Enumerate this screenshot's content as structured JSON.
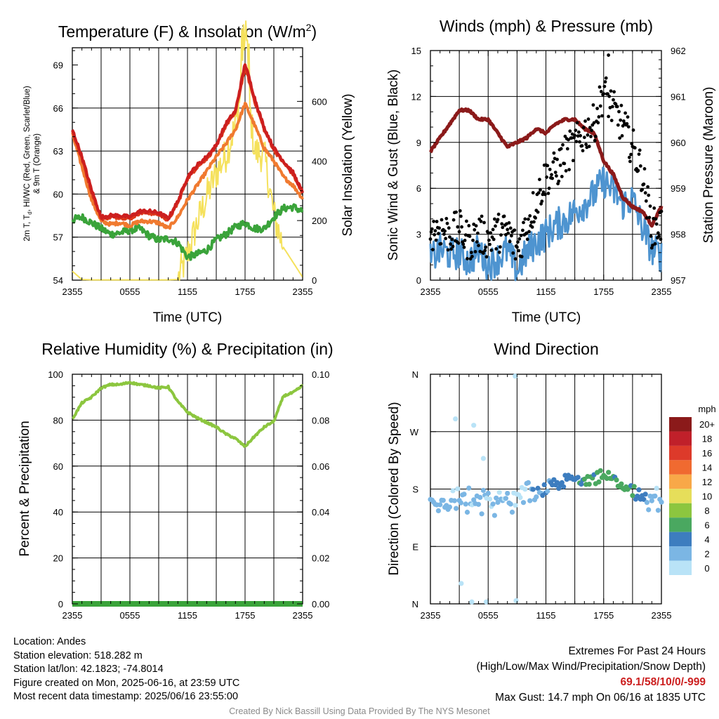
{
  "chart_data": [
    {
      "type": "line",
      "title": "Temperature (F) & Insolation (W/m²)",
      "xlabel": "Time (UTC)",
      "ylabel_left": "2m T, Td, HI/WC (Red, Green, Scarlet/Blue) & 9m T (Orange)",
      "ylabel_right": "Solar Insolation (Yellow)",
      "x_ticks": [
        "2355",
        "0555",
        "1155",
        "1755",
        "2355"
      ],
      "y_ticks_left": [
        54,
        57,
        60,
        63,
        66,
        69
      ],
      "y_ticks_right": [
        0,
        200,
        400,
        600
      ],
      "ylim_left": [
        54,
        70.2
      ],
      "ylim_right": [
        0,
        780
      ],
      "x_hours": [
        0,
        1,
        2,
        3,
        4,
        5,
        6,
        7,
        8,
        9,
        10,
        11,
        12,
        13,
        14,
        15,
        16,
        17,
        18,
        19,
        20,
        21,
        22,
        23,
        24
      ],
      "series": [
        {
          "color": "#cc1f1f",
          "axis": "left",
          "values": [
            64.5,
            62.6,
            60.3,
            58.4,
            58.5,
            58.5,
            58.4,
            58.8,
            58.8,
            58.7,
            58.3,
            59.5,
            61.2,
            62.0,
            62.6,
            63.4,
            64.9,
            65.8,
            69.1,
            66.7,
            64.6,
            63.2,
            62.3,
            61.5,
            60.1
          ]
        },
        {
          "color": "#dd3a1c",
          "axis": "left",
          "values": [
            64.4,
            62.5,
            60.2,
            58.3,
            58.4,
            58.4,
            58.3,
            58.7,
            58.7,
            58.6,
            58.2,
            59.4,
            61.1,
            61.9,
            62.5,
            63.3,
            64.8,
            65.7,
            68.9,
            66.5,
            64.5,
            63.1,
            62.2,
            61.4,
            60.0
          ]
        },
        {
          "color": "#f07a30",
          "axis": "left",
          "values": [
            64.2,
            61.9,
            59.6,
            58.1,
            57.9,
            58.0,
            57.8,
            58.1,
            58.1,
            58.0,
            57.6,
            58.4,
            59.6,
            60.6,
            61.6,
            62.6,
            63.5,
            64.5,
            66.3,
            64.8,
            63.2,
            62.3,
            61.2,
            60.6,
            59.7
          ]
        },
        {
          "color": "#3aa33a",
          "axis": "left",
          "values": [
            58.2,
            58.4,
            58.0,
            57.6,
            57.2,
            57.3,
            57.5,
            57.6,
            57.1,
            56.8,
            56.9,
            56.6,
            55.6,
            55.8,
            56.1,
            56.8,
            57.2,
            57.7,
            58.0,
            57.6,
            57.6,
            58.4,
            59.0,
            59.1,
            58.8
          ]
        },
        {
          "color": "#f5e15c",
          "axis": "right",
          "values": [
            30,
            2,
            1,
            1,
            1,
            1,
            1,
            1,
            1,
            1,
            1,
            2,
            85,
            190,
            280,
            360,
            420,
            520,
            720,
            430,
            420,
            220,
            110,
            60,
            10
          ]
        }
      ]
    },
    {
      "type": "scatter",
      "title": "Winds (mph) & Pressure (mb)",
      "xlabel": "Time (UTC)",
      "ylabel_left": "Sonic Wind & Gust (Blue, Black)",
      "ylabel_right": "Station Pressure (Maroon)",
      "x_ticks": [
        "2355",
        "0555",
        "1155",
        "1755",
        "2355"
      ],
      "y_ticks_left": [
        0,
        3,
        6,
        9,
        12,
        15
      ],
      "y_ticks_right": [
        957,
        958,
        959,
        960,
        961,
        962
      ],
      "ylim_left": [
        0,
        15
      ],
      "ylim_right": [
        957,
        962
      ],
      "x_hours": [
        0,
        1,
        2,
        3,
        4,
        5,
        6,
        7,
        8,
        9,
        10,
        11,
        12,
        13,
        14,
        15,
        16,
        17,
        18,
        19,
        20,
        21,
        22,
        23,
        24
      ],
      "series": [
        {
          "name": "",
          "color": "#8b1a1a",
          "axis": "right",
          "values": [
            959.8,
            960.1,
            960.4,
            960.7,
            960.7,
            960.5,
            960.5,
            960.2,
            959.9,
            960.0,
            960.1,
            960.3,
            960.2,
            960.4,
            960.5,
            960.5,
            960.3,
            960.2,
            959.6,
            959.3,
            958.8,
            958.6,
            958.5,
            958.2,
            958.6
          ]
        },
        {
          "name": "",
          "color": "#4e94d0",
          "axis": "left",
          "values": [
            1.3,
            2.0,
            1.7,
            1.8,
            1.2,
            2.0,
            1.0,
            1.4,
            2.0,
            0.6,
            1.8,
            2.5,
            3.0,
            3.6,
            3.9,
            4.5,
            5.0,
            5.6,
            6.5,
            5.8,
            5.0,
            5.3,
            3.5,
            2.0,
            1.6
          ]
        },
        {
          "name": "",
          "color": "#000000",
          "axis": "left",
          "values": [
            3.2,
            3.4,
            3.0,
            3.3,
            2.5,
            3.0,
            2.7,
            3.1,
            3.2,
            2.0,
            3.6,
            5.2,
            6.8,
            7.1,
            8.2,
            8.8,
            9.6,
            10.2,
            12.4,
            11.1,
            10.1,
            8.7,
            7.0,
            3.4,
            3.6
          ]
        }
      ],
      "max_gust_point": {
        "x_hour": 18.5,
        "value": 14.7
      }
    },
    {
      "type": "line",
      "title": "Relative Humidity (%) & Precipitation (in)",
      "xlabel": "",
      "ylabel_left": "Percent & Precipitation",
      "ylabel_right": "",
      "x_ticks": [
        "2355",
        "0555",
        "1155",
        "1755",
        "2355"
      ],
      "y_ticks_left": [
        0,
        20,
        40,
        60,
        80,
        100
      ],
      "y_ticks_right": [
        "0.00",
        "0.02",
        "0.04",
        "0.06",
        "0.08",
        "0.10"
      ],
      "ylim_left": [
        0,
        100
      ],
      "ylim_right": [
        0,
        0.1
      ],
      "x_hours": [
        0,
        1,
        2,
        3,
        4,
        5,
        6,
        7,
        8,
        9,
        10,
        11,
        12,
        13,
        14,
        15,
        16,
        17,
        18,
        19,
        20,
        21,
        22,
        23,
        24
      ],
      "series": [
        {
          "name": "",
          "color": "#8cc63f",
          "axis": "left",
          "values": [
            80.5,
            87.5,
            90.0,
            94.0,
            95.5,
            95.5,
            96.5,
            95.5,
            95.0,
            94.0,
            94.5,
            88.0,
            83.5,
            81.0,
            79.0,
            77.0,
            74.0,
            72.0,
            68.5,
            73.0,
            77.0,
            79.5,
            90.5,
            92.0,
            95.0
          ]
        },
        {
          "name": "",
          "color": "#3aa33a",
          "axis": "right",
          "values": [
            0,
            0,
            0,
            0,
            0,
            0,
            0,
            0,
            0,
            0,
            0,
            0,
            0,
            0,
            0,
            0,
            0,
            0,
            0,
            0,
            0,
            0,
            0,
            0,
            0
          ]
        }
      ]
    },
    {
      "type": "scatter",
      "title": "Wind Direction",
      "ylabel_left": "Direction (Colored By Speed)",
      "x_ticks": [
        "2355",
        "0555",
        "1155",
        "1755",
        "2355"
      ],
      "y_ticks_left": [
        "N",
        "E",
        "S",
        "W",
        "N"
      ],
      "ylim_left": [
        0,
        360
      ],
      "colorbar_title": "mph",
      "colorbar_labels": [
        "20+",
        "18",
        "16",
        "14",
        "12",
        "10",
        "8",
        "6",
        "4",
        "2",
        "0"
      ],
      "colorbar_colors": [
        "#8b1a1a",
        "#c0202a",
        "#dd3a2a",
        "#f06a30",
        "#f8a848",
        "#e6de5a",
        "#8cc63f",
        "#4aa860",
        "#3d7dbf",
        "#7bb6e4",
        "#b9e3f7"
      ],
      "x_hours": [
        0,
        1,
        2,
        3,
        4,
        5,
        6,
        7,
        8,
        9,
        10,
        11,
        12,
        13,
        14,
        15,
        16,
        17,
        18,
        19,
        20,
        21,
        22,
        23,
        24
      ],
      "direction_deg": [
        165,
        162,
        158,
        168,
        160,
        156,
        165,
        158,
        168,
        160,
        170,
        175,
        182,
        186,
        192,
        195,
        197,
        198,
        200,
        196,
        190,
        178,
        165,
        160,
        165
      ],
      "speed_mph": [
        1.3,
        2.0,
        1.7,
        1.8,
        1.2,
        2.0,
        1.0,
        1.4,
        2.0,
        0.6,
        1.8,
        2.5,
        3.0,
        3.6,
        3.9,
        4.5,
        5.0,
        5.6,
        6.5,
        5.8,
        5.0,
        5.3,
        3.5,
        2.0,
        1.6
      ],
      "outliers": [
        {
          "x_hour": 2.6,
          "deg": 290
        },
        {
          "x_hour": 4.5,
          "deg": 280
        },
        {
          "x_hour": 8.8,
          "deg": 357
        },
        {
          "x_hour": 3.2,
          "deg": 32
        },
        {
          "x_hour": 5.8,
          "deg": 3
        },
        {
          "x_hour": 4.3,
          "deg": 3
        },
        {
          "x_hour": 8.9,
          "deg": 5
        },
        {
          "x_hour": 5.5,
          "deg": 228
        }
      ]
    }
  ],
  "footer": {
    "location": "Location: Andes",
    "elevation": "Station elevation: 518.282 m",
    "latlon": "Station lat/lon: 42.1823; -74.8014",
    "created": "Figure created on Mon, 2025-06-16, at 23:59 UTC",
    "recent": "Most recent data timestamp: 2025/06/16 23:55:00",
    "extremes_title": "Extremes For Past 24 Hours",
    "extremes_sub": "(High/Low/Max Wind/Precipitation/Snow Depth)",
    "extremes_values": "69.1/58/10/0/-999",
    "max_gust": "Max Gust: 14.7 mph On 06/16 at 1835 UTC",
    "credit": "Created By Nick Bassill Using Data Provided By The NYS Mesonet"
  },
  "colors": {
    "temp_red": "#cc1f1f",
    "temp_orange": "#f07a30",
    "dew_green": "#3aa33a",
    "insolation_yellow": "#f5e15c",
    "pressure_maroon": "#8b1a1a",
    "wind_blue": "#4e94d0",
    "rh_green": "#8cc63f",
    "extremes_red": "#cc1f1f"
  }
}
